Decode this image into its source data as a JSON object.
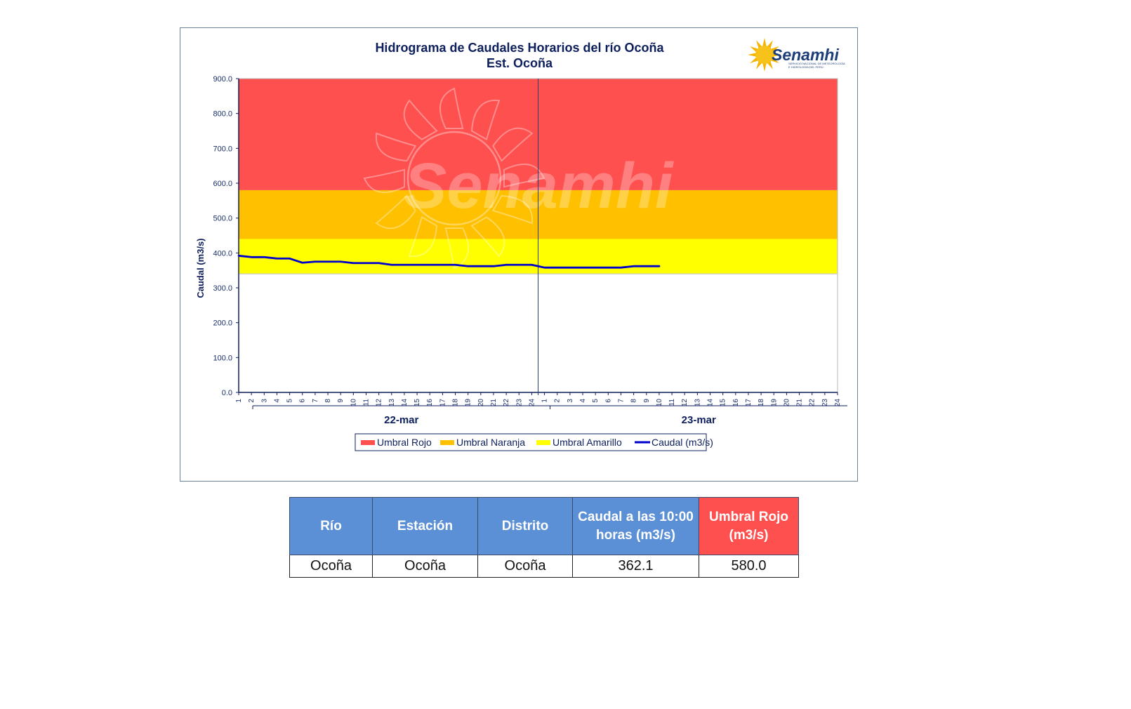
{
  "chart_data": {
    "type": "line",
    "title": "Hidrograma de Caudales Horarios del río Ocoña",
    "subtitle": "Est. Ocoña",
    "ylabel": "Caudal (m3/s)",
    "ylim": [
      0,
      900
    ],
    "yticks": [
      "0.0",
      "100.0",
      "200.0",
      "300.0",
      "400.0",
      "500.0",
      "600.0",
      "700.0",
      "800.0",
      "900.0"
    ],
    "x_hours": [
      "1",
      "2",
      "3",
      "4",
      "5",
      "6",
      "7",
      "8",
      "9",
      "10",
      "11",
      "12",
      "13",
      "14",
      "15",
      "16",
      "17",
      "18",
      "19",
      "20",
      "21",
      "22",
      "23",
      "24"
    ],
    "dates": [
      "22-mar",
      "23-mar"
    ],
    "thresholds": [
      {
        "name": "Umbral Rojo",
        "from": 580,
        "to": 900,
        "color": "#ff5050"
      },
      {
        "name": "Umbral Naranja",
        "from": 440,
        "to": 580,
        "color": "#ffc000"
      },
      {
        "name": "Umbral Amarillo",
        "from": 340,
        "to": 440,
        "color": "#ffff00"
      }
    ],
    "series": [
      {
        "name": "Caudal (m3/s)",
        "color": "#0000cc",
        "day1": [
          392,
          388,
          388,
          384,
          384,
          372,
          375,
          375,
          375,
          371,
          371,
          371,
          366,
          366,
          366,
          366,
          366,
          366,
          362,
          362,
          362,
          366,
          366,
          366
        ],
        "day2": [
          358,
          358,
          358,
          358,
          358,
          358,
          358,
          362,
          362,
          362
        ]
      }
    ],
    "legend_position": "bottom",
    "grid": false
  },
  "logo": {
    "name": "Senamhi",
    "subtitle_line1": "SERVICIO NACIONAL DE METEOROLOGÍA",
    "subtitle_line2": "E HIDROLOGÍA DEL PERÚ"
  },
  "watermark": "Senamhi",
  "table": {
    "headers": [
      "Río",
      "Estación",
      "Distrito",
      "Caudal a las 10:00 horas (m3/s)",
      "Umbral Rojo (m3/s)"
    ],
    "row": [
      "Ocoña",
      "Ocoña",
      "Ocoña",
      "362.1",
      "580.0"
    ],
    "header_colors": {
      "default": "#5b8fd6",
      "umbral": "#ff5050"
    }
  }
}
